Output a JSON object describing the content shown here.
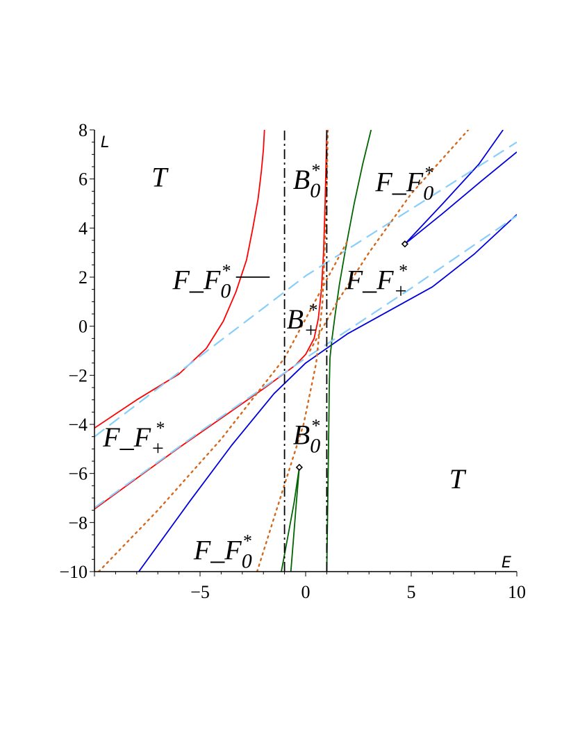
{
  "chart_data": {
    "type": "line",
    "title": "",
    "xlabel": "E",
    "ylabel": "L",
    "xlim": [
      -10,
      10
    ],
    "ylim": [
      -10,
      8
    ],
    "grid": false,
    "legend": "none",
    "x_ticks": [
      {
        "value": -5,
        "label": "−5"
      },
      {
        "value": 0,
        "label": "0"
      },
      {
        "value": 5,
        "label": "5"
      },
      {
        "value": 10,
        "label": "10"
      }
    ],
    "y_ticks": [
      {
        "value": -10,
        "label": "−10"
      },
      {
        "value": -8,
        "label": "−8"
      },
      {
        "value": -6,
        "label": "−6"
      },
      {
        "value": -4,
        "label": "−4"
      },
      {
        "value": -2,
        "label": "−2"
      },
      {
        "value": 0,
        "label": "0"
      },
      {
        "value": 2,
        "label": "2"
      },
      {
        "value": 4,
        "label": "4"
      },
      {
        "value": 6,
        "label": "6"
      },
      {
        "value": 8,
        "label": "8"
      }
    ],
    "series": [
      {
        "id": "red-upper",
        "color": "#ff0000",
        "dash": "solid",
        "points": [
          [
            -10,
            -4.15
          ],
          [
            -8,
            -3.0
          ],
          [
            -6,
            -1.95
          ],
          [
            -4.7,
            -0.9
          ],
          [
            -3.9,
            0.2
          ],
          [
            -3.3,
            1.4
          ],
          [
            -2.8,
            2.7
          ],
          [
            -2.5,
            4.0
          ],
          [
            -2.25,
            5.2
          ],
          [
            -2.1,
            6.3
          ],
          [
            -2.0,
            7.2
          ],
          [
            -1.95,
            8.0
          ]
        ]
      },
      {
        "id": "red-lower",
        "color": "#ff0000",
        "dash": "solid",
        "points": [
          [
            -10,
            -7.45
          ],
          [
            -8,
            -6.2
          ],
          [
            -6,
            -4.95
          ],
          [
            -4,
            -3.75
          ],
          [
            -2,
            -2.55
          ],
          [
            -0.5,
            -1.6
          ],
          [
            0,
            -1.15
          ],
          [
            0.4,
            -0.5
          ],
          [
            0.6,
            0.3
          ],
          [
            0.75,
            1.5
          ],
          [
            0.85,
            3.0
          ],
          [
            0.92,
            5.0
          ],
          [
            0.97,
            6.8
          ],
          [
            1.0,
            8.0
          ]
        ]
      },
      {
        "id": "blue-main",
        "color": "#0000dd",
        "dash": "solid",
        "points": [
          [
            -7.9,
            -10
          ],
          [
            -5.5,
            -7.15
          ],
          [
            -3.5,
            -4.85
          ],
          [
            -1.5,
            -2.75
          ],
          [
            0,
            -1.5
          ],
          [
            2,
            -0.3
          ],
          [
            4,
            0.65
          ],
          [
            6,
            1.6
          ],
          [
            8,
            2.95
          ],
          [
            10,
            4.55
          ]
        ]
      },
      {
        "id": "blue-cusp-upper",
        "color": "#0000dd",
        "dash": "solid",
        "points": [
          [
            4.7,
            3.35
          ],
          [
            6.5,
            5.0
          ],
          [
            8.2,
            6.6
          ],
          [
            9.35,
            8.0
          ]
        ]
      },
      {
        "id": "blue-cusp-lower",
        "color": "#0000dd",
        "dash": "solid",
        "points": [
          [
            4.7,
            3.35
          ],
          [
            6.5,
            4.6
          ],
          [
            8.3,
            5.9
          ],
          [
            10,
            7.1
          ]
        ]
      },
      {
        "id": "green-upper",
        "color": "#006400",
        "dash": "solid",
        "points": [
          [
            1.15,
            -1.3
          ],
          [
            1.25,
            -0.5
          ],
          [
            1.4,
            0.5
          ],
          [
            1.6,
            1.7
          ],
          [
            1.9,
            3.2
          ],
          [
            2.3,
            5.0
          ],
          [
            2.7,
            6.6
          ],
          [
            3.1,
            8.0
          ]
        ]
      },
      {
        "id": "green-lower",
        "color": "#006400",
        "dash": "solid",
        "points": [
          [
            1.0,
            -10
          ],
          [
            1.05,
            -7.0
          ],
          [
            1.1,
            -4.0
          ],
          [
            1.12,
            -2.5
          ],
          [
            1.15,
            -1.3
          ]
        ]
      },
      {
        "id": "green-cusp-a",
        "color": "#006400",
        "dash": "solid",
        "points": [
          [
            -0.3,
            -5.75
          ],
          [
            -0.55,
            -7.2
          ],
          [
            -0.85,
            -8.6
          ],
          [
            -1.15,
            -10
          ]
        ]
      },
      {
        "id": "green-cusp-b",
        "color": "#006400",
        "dash": "solid",
        "points": [
          [
            -0.3,
            -5.75
          ],
          [
            -0.45,
            -7.3
          ],
          [
            -0.58,
            -8.7
          ],
          [
            -0.7,
            -10
          ]
        ]
      },
      {
        "id": "lightblue-upper",
        "color": "#87cefa",
        "dash": "long-dash",
        "points": [
          [
            -10,
            -4.5
          ],
          [
            0,
            2.05
          ],
          [
            10,
            7.5
          ]
        ]
      },
      {
        "id": "lightblue-lower",
        "color": "#87cefa",
        "dash": "long-dash",
        "points": [
          [
            -10,
            -7.4
          ],
          [
            -5,
            -4.3
          ],
          [
            0,
            -1.3
          ],
          [
            5,
            1.55
          ],
          [
            10,
            4.5
          ]
        ]
      },
      {
        "id": "orange-left",
        "color": "#d2691e",
        "dash": "dotted",
        "points": [
          [
            -9.8,
            -10
          ],
          [
            -7,
            -7.5
          ],
          [
            -4,
            -4.6
          ],
          [
            -1,
            -1.3
          ],
          [
            1,
            1.9
          ],
          [
            2.0,
            3.5
          ]
        ]
      },
      {
        "id": "orange-upper",
        "color": "#d2691e",
        "dash": "dotted",
        "points": [
          [
            0.2,
            -1.0
          ],
          [
            1.5,
            1.0
          ],
          [
            3,
            3.0
          ],
          [
            5,
            5.4
          ],
          [
            7.7,
            8.0
          ]
        ]
      },
      {
        "id": "orange-lower",
        "color": "#d2691e",
        "dash": "dotted",
        "points": [
          [
            -2.3,
            -10
          ],
          [
            -1.2,
            -7.0
          ],
          [
            -0.1,
            -4.0
          ],
          [
            0.5,
            -1.5
          ],
          [
            0.8,
            1.0
          ],
          [
            0.92,
            3.5
          ],
          [
            1.0,
            5.5
          ],
          [
            1.05,
            8.0
          ]
        ]
      },
      {
        "id": "black-dashdot-left",
        "color": "#000000",
        "dash": "dash-dot",
        "points": [
          [
            -1.0,
            -10
          ],
          [
            -1.0,
            8.0
          ]
        ]
      },
      {
        "id": "black-dashdot-right",
        "color": "#000000",
        "dash": "dash-dot",
        "points": [
          [
            1.0,
            -10
          ],
          [
            1.0,
            8.0
          ]
        ]
      }
    ],
    "cusp_markers": [
      [
        4.7,
        3.35
      ],
      [
        -0.3,
        -5.75
      ]
    ],
    "annotation_segments": [
      [
        [
          -3.3,
          2.0
        ],
        [
          -1.7,
          2.0
        ]
      ]
    ],
    "region_labels": [
      {
        "id": "T-top",
        "text": "T",
        "x": -7.3,
        "y": 5.7
      },
      {
        "id": "T-bottom",
        "text": "T",
        "x": 6.8,
        "y": -6.6
      },
      {
        "id": "B0-top",
        "text": "B",
        "sub": "0",
        "sup": "*",
        "x": -0.6,
        "y": 5.6
      },
      {
        "id": "B0-bottom",
        "text": "B",
        "sub": "0",
        "sup": "*",
        "x": -0.6,
        "y": -4.8
      },
      {
        "id": "Bplus",
        "text": "B",
        "sub": "+",
        "sup": "*",
        "x": -0.9,
        "y": -0.1
      },
      {
        "id": "FF0-topright",
        "text": "F_F",
        "sub": "0",
        "sup": "*",
        "x": 3.3,
        "y": 5.5
      },
      {
        "id": "FF0-left",
        "text": "F_F",
        "sub": "0",
        "sup": "*",
        "x": -6.3,
        "y": 1.5
      },
      {
        "id": "FF0-bottom",
        "text": "F_F",
        "sub": "0",
        "sup": "*",
        "x": -5.3,
        "y": -9.5
      },
      {
        "id": "FFplus-center",
        "text": "F_F",
        "sub": "+",
        "sup": "*",
        "x": 1.9,
        "y": 1.5
      },
      {
        "id": "FFplus-left",
        "text": "F_F",
        "sub": "+",
        "sup": "*",
        "x": -9.6,
        "y": -4.9
      }
    ]
  }
}
